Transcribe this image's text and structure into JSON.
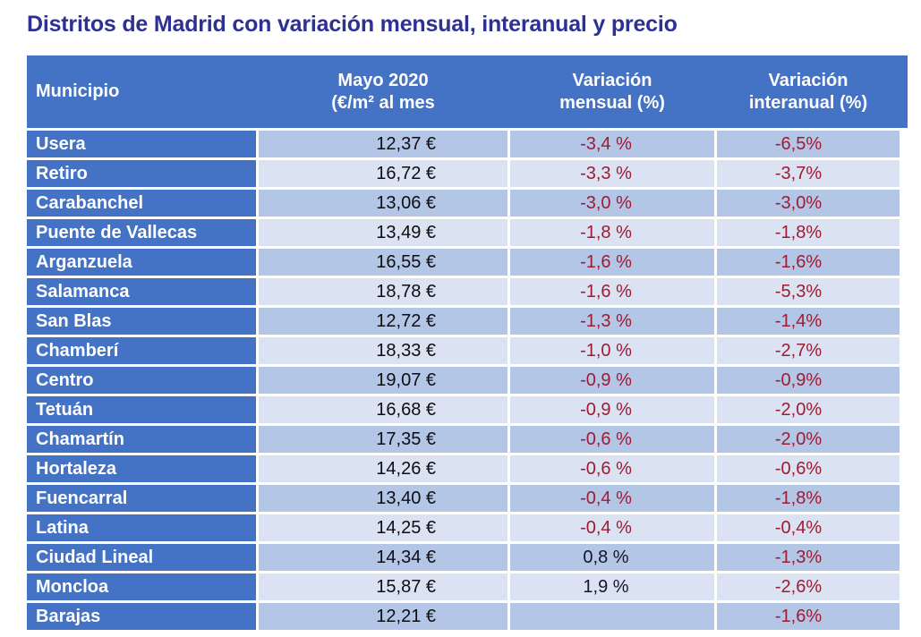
{
  "title": "Distritos de Madrid con variación mensual, interanual y precio",
  "colors": {
    "title-color": "#2e3093",
    "header-bg": "#4472c4",
    "band-dark": "#b3c6e6",
    "band-light": "#dbe3f2",
    "neg-color": "#9e1b32",
    "pos-color": "#14142a"
  },
  "table": {
    "headers": {
      "municipio": "Municipio",
      "price_line1": "Mayo 2020",
      "price_line2": "(€/m² al mes",
      "monthly_line1": "Variación",
      "monthly_line2": "mensual (%)",
      "yearly_line1": "Variación",
      "yearly_line2": "interanual (%)"
    },
    "rows": [
      {
        "name": "Usera",
        "price": "12,37 €",
        "monthly": "-3,4 %",
        "yearly": "-6,5%"
      },
      {
        "name": "Retiro",
        "price": "16,72 €",
        "monthly": "-3,3 %",
        "yearly": "-3,7%"
      },
      {
        "name": "Carabanchel",
        "price": "13,06 €",
        "monthly": "-3,0 %",
        "yearly": "-3,0%"
      },
      {
        "name": "Puente de Vallecas",
        "price": "13,49 €",
        "monthly": "-1,8 %",
        "yearly": "-1,8%"
      },
      {
        "name": "Arganzuela",
        "price": "16,55 €",
        "monthly": "-1,6 %",
        "yearly": "-1,6%"
      },
      {
        "name": "Salamanca",
        "price": "18,78 €",
        "monthly": "-1,6 %",
        "yearly": "-5,3%"
      },
      {
        "name": "San Blas",
        "price": "12,72 €",
        "monthly": "-1,3 %",
        "yearly": "-1,4%"
      },
      {
        "name": "Chamberí",
        "price": "18,33 €",
        "monthly": "-1,0 %",
        "yearly": "-2,7%"
      },
      {
        "name": "Centro",
        "price": "19,07 €",
        "monthly": "-0,9 %",
        "yearly": "-0,9%"
      },
      {
        "name": "Tetuán",
        "price": "16,68 €",
        "monthly": "-0,9 %",
        "yearly": "-2,0%"
      },
      {
        "name": "Chamartín",
        "price": "17,35 €",
        "monthly": "-0,6 %",
        "yearly": "-2,0%"
      },
      {
        "name": "Hortaleza",
        "price": "14,26 €",
        "monthly": "-0,6 %",
        "yearly": "-0,6%"
      },
      {
        "name": "Fuencarral",
        "price": "13,40 €",
        "monthly": "-0,4 %",
        "yearly": "-1,8%"
      },
      {
        "name": "Latina",
        "price": "14,25 €",
        "monthly": "-0,4 %",
        "yearly": "-0,4%"
      },
      {
        "name": "Ciudad Lineal",
        "price": "14,34 €",
        "monthly": "0,8 %",
        "yearly": "-1,3%"
      },
      {
        "name": "Moncloa",
        "price": "15,87 €",
        "monthly": "1,9 %",
        "yearly": "-2,6%"
      },
      {
        "name": "Barajas",
        "price": "12,21 €",
        "monthly": "",
        "yearly": "-1,6%"
      }
    ]
  },
  "chart_data": {
    "type": "table",
    "title": "Distritos de Madrid con variación mensual, interanual y precio",
    "columns": [
      "Municipio",
      "Mayo 2020 (€/m² al mes",
      "Variación mensual (%)",
      "Variación interanual (%)"
    ],
    "rows": [
      [
        "Usera",
        12.37,
        -3.4,
        -6.5
      ],
      [
        "Retiro",
        16.72,
        -3.3,
        -3.7
      ],
      [
        "Carabanchel",
        13.06,
        -3.0,
        -3.0
      ],
      [
        "Puente de Vallecas",
        13.49,
        -1.8,
        -1.8
      ],
      [
        "Arganzuela",
        16.55,
        -1.6,
        -1.6
      ],
      [
        "Salamanca",
        18.78,
        -1.6,
        -5.3
      ],
      [
        "San Blas",
        12.72,
        -1.3,
        -1.4
      ],
      [
        "Chamberí",
        18.33,
        -1.0,
        -2.7
      ],
      [
        "Centro",
        19.07,
        -0.9,
        -0.9
      ],
      [
        "Tetuán",
        16.68,
        -0.9,
        -2.0
      ],
      [
        "Chamartín",
        17.35,
        -0.6,
        -2.0
      ],
      [
        "Hortaleza",
        14.26,
        -0.6,
        -0.6
      ],
      [
        "Fuencarral",
        13.4,
        -0.4,
        -1.8
      ],
      [
        "Latina",
        14.25,
        -0.4,
        -0.4
      ],
      [
        "Ciudad Lineal",
        14.34,
        0.8,
        -1.3
      ],
      [
        "Moncloa",
        15.87,
        1.9,
        -2.6
      ],
      [
        "Barajas",
        12.21,
        null,
        -1.6
      ]
    ]
  }
}
